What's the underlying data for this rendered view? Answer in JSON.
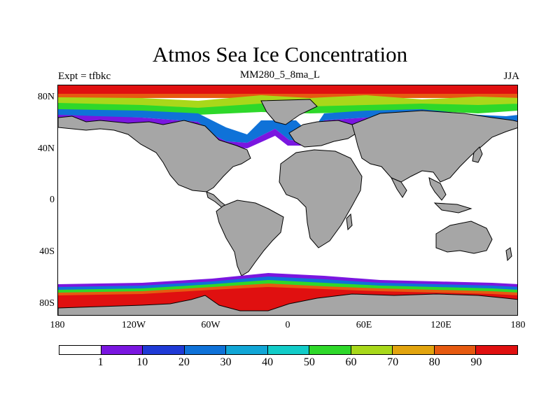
{
  "figure": {
    "title": "Atmos Sea Ice Concentration",
    "subtitle": "MM280_5_8ma_L",
    "left_string": "Expt = tfbkc",
    "right_string": "JJA"
  },
  "map": {
    "projection": "cylindrical-equidistant",
    "lon_range": [
      -180,
      180
    ],
    "lat_range": [
      -90,
      90
    ],
    "land_color": "#a6a6a6",
    "lat_tick_labels": [
      "80N",
      "40N",
      "0",
      "40S",
      "80S"
    ],
    "lon_tick_labels": [
      "180",
      "120W",
      "60W",
      "0",
      "60E",
      "120E",
      "180"
    ]
  },
  "colorbar": {
    "labels": [
      "1",
      "10",
      "20",
      "30",
      "40",
      "50",
      "60",
      "70",
      "80",
      "90"
    ],
    "colors": [
      "#ffffff",
      "#7a16e0",
      "#1f3ad6",
      "#0f72d8",
      "#11a6d6",
      "#12ccc8",
      "#2ed82a",
      "#a8d81a",
      "#e2a40e",
      "#e65a10",
      "#e01010"
    ]
  }
}
